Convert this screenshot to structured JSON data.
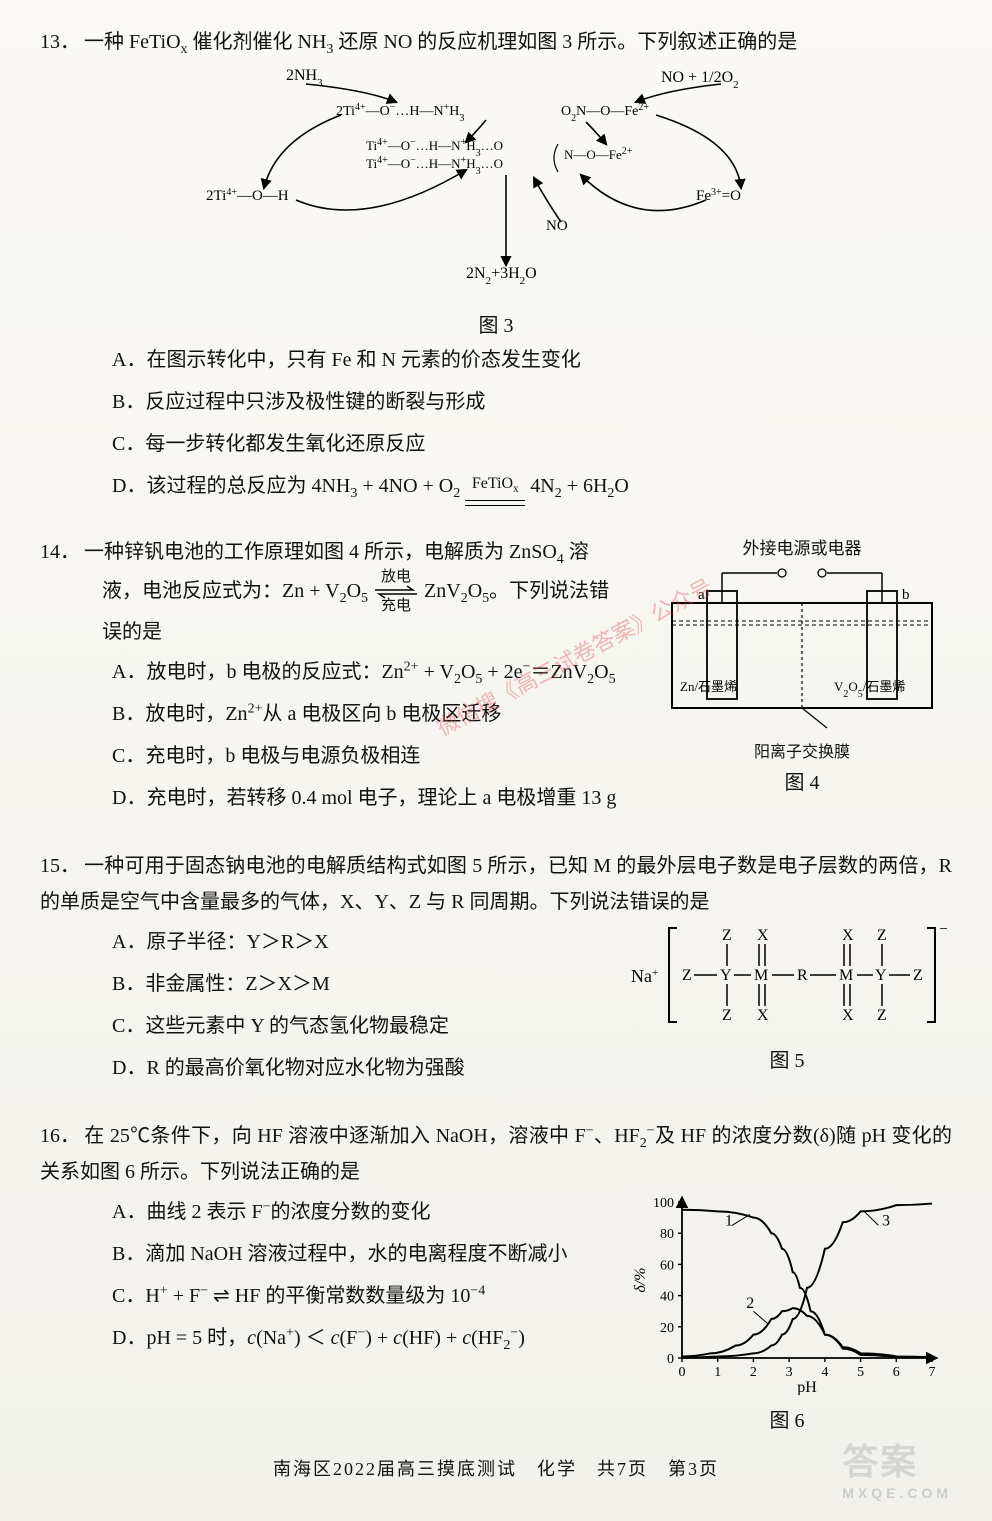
{
  "q13": {
    "number": "13．",
    "stem": "一种 FeTiO<sub>x</sub> 催化剂催化 NH<sub>3</sub> 还原 NO 的反应机理如图 3 所示。下列叙述正确的是",
    "fig": {
      "label_top_left": "2NH<tspan baseline-shift='sub' font-size='11'>3</tspan>",
      "label_top_right": "NO + 1/2O<tspan baseline-shift='sub' font-size='11'>2</tspan>",
      "label_l1": "2Ti<tspan baseline-shift='super' font-size='10'>4+</tspan>—O<tspan baseline-shift='super' font-size='10'>−</tspan>…H—N<tspan baseline-shift='super' font-size='10'>+</tspan>H<tspan baseline-shift='sub' font-size='10'>3</tspan>",
      "label_r1": "O<tspan baseline-shift='sub' font-size='10'>2</tspan>N—O—Fe<tspan baseline-shift='super' font-size='10'>2+</tspan>",
      "label_m1": "Ti<tspan baseline-shift='super' font-size='10'>4+</tspan>—O<tspan baseline-shift='super' font-size='10'>−</tspan>…H—N<tspan baseline-shift='super' font-size='10'>+</tspan>H<tspan baseline-shift='sub' font-size='10'>3</tspan>…O",
      "label_m2": "Ti<tspan baseline-shift='super' font-size='10'>4+</tspan>—O<tspan baseline-shift='super' font-size='10'>−</tspan>…H—N<tspan baseline-shift='super' font-size='10'>+</tspan>H<tspan baseline-shift='sub' font-size='10'>3</tspan>…O",
      "label_mr": "N—O—Fe<tspan baseline-shift='super' font-size='10'>2+</tspan>",
      "label_left": "2Ti<tspan baseline-shift='super' font-size='10'>4+</tspan>—O—H",
      "label_right": "Fe<tspan baseline-shift='super' font-size='10'>3+</tspan>=O",
      "label_no": "NO",
      "label_bottom": "2N<tspan baseline-shift='sub' font-size='11'>2</tspan>+3H<tspan baseline-shift='sub' font-size='11'>2</tspan>O",
      "caption": "图 3",
      "stroke": "#000000",
      "text_color": "#000000"
    },
    "opts": {
      "A": "A．在图示转化中，只有 Fe 和 N 元素的价态发生变化",
      "B": "B．反应过程中只涉及极性键的断裂与形成",
      "C": "C．每一步转化都发生氧化还原反应",
      "D_pre": "D．该过程的总反应为 4NH<sub>3</sub> + 4NO + O<sub>2</sub> ",
      "D_cat_top": "FeTiO<sub>x</sub>",
      "D_post": " 4N<sub>2</sub> + 6H<sub>2</sub>O"
    }
  },
  "q14": {
    "number": "14．",
    "stem_l1": "一种锌钒电池的工作原理如图 4 所示，电解质为 ZnSO<sub>4</sub> 溶",
    "stem_l2_pre": "液，电池反应式为：Zn + V<sub>2</sub>O<sub>5</sub> ",
    "arrow_top": "放电",
    "arrow_bot": "充电",
    "stem_l2_post": " ZnV<sub>2</sub>O<sub>5</sub>。下列说法错",
    "stem_l3": "误的是",
    "opts": {
      "A": "A．放电时，b 电极的反应式：Zn<sup>2+</sup> + V<sub>2</sub>O<sub>5</sub> + 2e<sup>−</sup>＝ZnV<sub>2</sub>O<sub>5</sub>",
      "B": "B．放电时，Zn<sup>2+</sup>从 a 电极区向 b 电极区迁移",
      "C": "C．充电时，b 电极与电源负极相连",
      "D": "D．充电时，若转移 0.4 mol 电子，理论上 a 电极增重 13 g"
    },
    "fig": {
      "top_label": "外接电源或电器",
      "a": "a",
      "b": "b",
      "left_elec": "Zn/石墨烯",
      "right_elec": "V<tspan baseline-shift='sub' font-size='10'>2</tspan>O<tspan baseline-shift='sub' font-size='10'>5</tspan>/石墨烯",
      "membrane": "阳离子交换膜",
      "caption": "图 4",
      "stroke": "#000000"
    }
  },
  "q15": {
    "number": "15．",
    "stem": "一种可用于固态钠电池的电解质结构式如图 5 所示，已知 M 的最外层电子数是电子层数的两倍，R 的单质是空气中含量最多的气体，X、Y、Z 与 R 同周期。下列说法错误的是",
    "opts": {
      "A": "A．原子半径：Y＞R＞X",
      "B": "B．非金属性：Z＞X＞M",
      "C": "C．这些元素中 Y 的气态氢化物最稳定",
      "D": "D．R 的最高价氧化物对应水化物为强酸"
    },
    "fig": {
      "na": "Na<tspan baseline-shift='super' font-size='11'>+</tspan>",
      "Z": "Z",
      "X": "X",
      "Y": "Y",
      "M": "M",
      "R": "R",
      "caption": "图 5",
      "stroke": "#000000"
    }
  },
  "q16": {
    "number": "16．",
    "stem": "在 25℃条件下，向 HF 溶液中逐渐加入 NaOH，溶液中 F<sup>−</sup>、HF<sub>2</sub><sup>−</sup>及 HF 的浓度分数(δ)随 pH 变化的关系如图 6 所示。下列说法正确的是",
    "opts": {
      "A": "A．曲线 2 表示 F<sup>−</sup>的浓度分数的变化",
      "B": "B．滴加 NaOH 溶液过程中，水的电离程度不断减小",
      "C": "C．H<sup>+</sup> + F<sup>−</sup> ⇌ HF 的平衡常数数量级为 10<sup>−4</sup>",
      "D": "D．pH = 5 时，<i>c</i>(Na<sup>+</sup>) ＜ <i>c</i>(F<sup>−</sup>) + <i>c</i>(HF) + <i>c</i>(HF<sub>2</sub><sup>−</sup>)"
    },
    "fig": {
      "y_label": "δ/%",
      "x_label": "pH",
      "y_ticks": [
        0,
        20,
        40,
        60,
        80,
        100
      ],
      "x_ticks": [
        0,
        1,
        2,
        3,
        4,
        5,
        6,
        7
      ],
      "series1_label": "1",
      "series2_label": "2",
      "series3_label": "3",
      "curve1": [
        [
          0,
          95
        ],
        [
          1,
          94
        ],
        [
          2,
          90
        ],
        [
          2.5,
          80
        ],
        [
          2.8,
          70
        ],
        [
          3.1,
          55
        ],
        [
          3.3,
          45
        ],
        [
          3.6,
          30
        ],
        [
          4,
          15
        ],
        [
          4.5,
          6
        ],
        [
          5,
          2
        ],
        [
          6,
          0.5
        ],
        [
          7,
          0.2
        ]
      ],
      "curve2": [
        [
          0,
          1
        ],
        [
          0.8,
          3
        ],
        [
          1.5,
          8
        ],
        [
          2,
          15
        ],
        [
          2.5,
          25
        ],
        [
          2.8,
          30
        ],
        [
          3.1,
          32
        ],
        [
          3.5,
          27
        ],
        [
          4,
          15
        ],
        [
          4.5,
          7
        ],
        [
          5,
          3
        ],
        [
          6,
          1
        ],
        [
          7,
          0.5
        ]
      ],
      "curve3": [
        [
          0,
          0.2
        ],
        [
          1,
          1
        ],
        [
          2,
          3
        ],
        [
          2.5,
          8
        ],
        [
          2.8,
          15
        ],
        [
          3.1,
          25
        ],
        [
          3.5,
          45
        ],
        [
          4,
          70
        ],
        [
          4.5,
          87
        ],
        [
          5,
          94
        ],
        [
          6,
          98
        ],
        [
          7,
          99
        ]
      ],
      "caption": "图 6",
      "stroke": "#000000",
      "axis_width": 1.8
    }
  },
  "footer": "南海区2022届高三摸底测试　化学　共7页　第3页",
  "watermark_main": "答案",
  "watermark_sub": "MXQE.COM",
  "watermark_diag": "微信搜《高三试卷答案》公众号"
}
